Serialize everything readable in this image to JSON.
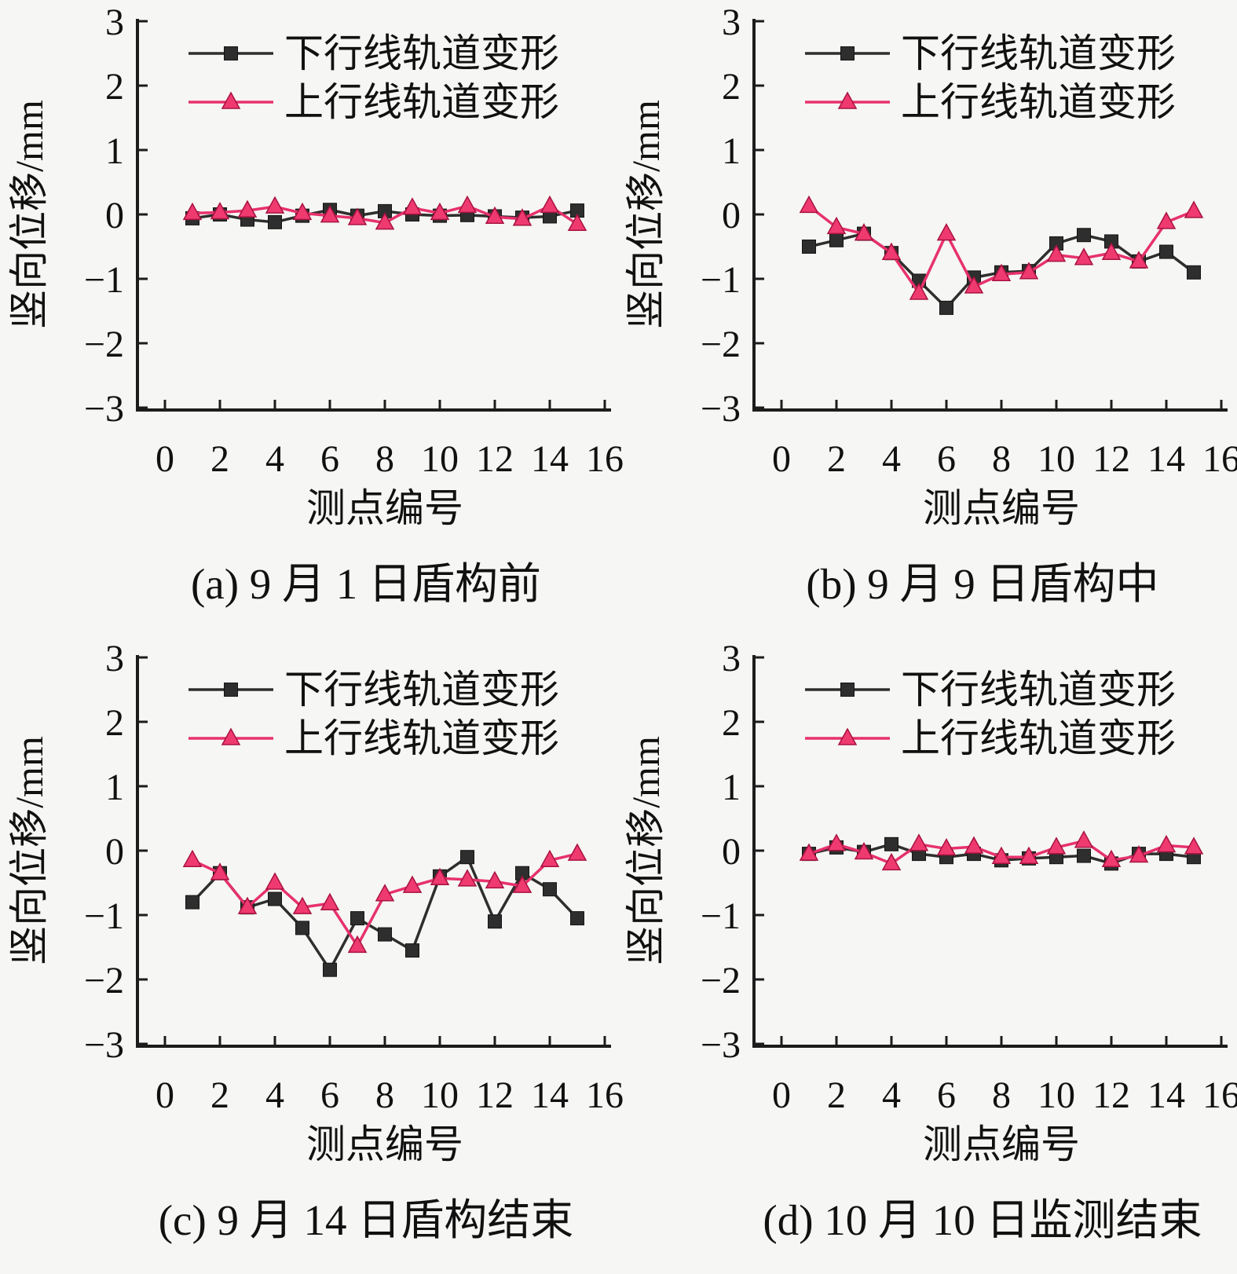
{
  "figure": {
    "background": "#f6f6f4",
    "text_color": "#111111",
    "axis_color": "#1c1c1c",
    "series_styles": [
      {
        "key": "down",
        "label": "下行线轨道变形",
        "line_color": "#2e2e2e",
        "marker": "square",
        "marker_fill": "#2e2e2e",
        "marker_edge": "#141414"
      },
      {
        "key": "up",
        "label": "上行线轨道变形",
        "line_color": "#e7316d",
        "marker": "triangle",
        "marker_fill": "#ef3a70",
        "marker_edge": "#a8123f"
      }
    ]
  },
  "chart_data": [
    {
      "id": "a",
      "type": "line",
      "caption": "(a) 9 月 1 日盾构前",
      "xlabel": "测点编号",
      "ylabel": "竖向位移/mm",
      "xlim": [
        0,
        16
      ],
      "ylim": [
        -3,
        3
      ],
      "grid": false,
      "xticks": [
        0,
        2,
        4,
        6,
        8,
        10,
        12,
        14,
        16
      ],
      "yticks": [
        3,
        2,
        1,
        0,
        -1,
        -2,
        -3
      ],
      "legend_position": "top-inside",
      "x": [
        1,
        2,
        3,
        4,
        5,
        6,
        7,
        8,
        9,
        10,
        11,
        12,
        13,
        14,
        15
      ],
      "series": [
        {
          "name": "下行线轨道变形",
          "values": [
            -0.06,
            0.0,
            -0.08,
            -0.12,
            -0.02,
            0.07,
            -0.02,
            0.05,
            0.0,
            -0.02,
            -0.01,
            -0.03,
            -0.05,
            -0.03,
            0.06
          ]
        },
        {
          "name": "上行线轨道变形",
          "values": [
            0.02,
            0.03,
            0.06,
            0.12,
            0.02,
            -0.02,
            -0.06,
            -0.13,
            0.1,
            0.02,
            0.13,
            -0.04,
            -0.07,
            0.13,
            -0.15
          ]
        }
      ]
    },
    {
      "id": "b",
      "type": "line",
      "caption": "(b) 9 月 9 日盾构中",
      "xlabel": "测点编号",
      "ylabel": "竖向位移/mm",
      "xlim": [
        0,
        16
      ],
      "ylim": [
        -3,
        3
      ],
      "grid": false,
      "xticks": [
        0,
        2,
        4,
        6,
        8,
        10,
        12,
        14,
        16
      ],
      "yticks": [
        3,
        2,
        1,
        0,
        -1,
        -2,
        -3
      ],
      "legend_position": "top-inside",
      "x": [
        1,
        2,
        3,
        4,
        5,
        6,
        7,
        8,
        9,
        10,
        11,
        12,
        13,
        14,
        15
      ],
      "series": [
        {
          "name": "下行线轨道变形",
          "values": [
            -0.5,
            -0.4,
            -0.3,
            -0.6,
            -1.03,
            -1.45,
            -0.98,
            -0.9,
            -0.88,
            -0.45,
            -0.32,
            -0.42,
            -0.73,
            -0.58,
            -0.9
          ]
        },
        {
          "name": "上行线轨道变形",
          "values": [
            0.13,
            -0.2,
            -0.3,
            -0.6,
            -1.22,
            -0.3,
            -1.12,
            -0.93,
            -0.9,
            -0.63,
            -0.68,
            -0.6,
            -0.73,
            -0.12,
            0.05
          ]
        }
      ]
    },
    {
      "id": "c",
      "type": "line",
      "caption": "(c) 9 月 14 日盾构结束",
      "xlabel": "测点编号",
      "ylabel": "竖向位移/mm",
      "xlim": [
        0,
        16
      ],
      "ylim": [
        -3,
        3
      ],
      "grid": false,
      "xticks": [
        0,
        2,
        4,
        6,
        8,
        10,
        12,
        14,
        16
      ],
      "yticks": [
        3,
        2,
        1,
        0,
        -1,
        -2,
        -3
      ],
      "legend_position": "top-inside",
      "x": [
        1,
        2,
        3,
        4,
        5,
        6,
        7,
        8,
        9,
        10,
        11,
        12,
        13,
        14,
        15
      ],
      "series": [
        {
          "name": "下行线轨道变形",
          "values": [
            -0.8,
            -0.35,
            -0.88,
            -0.75,
            -1.2,
            -1.85,
            -1.05,
            -1.3,
            -1.55,
            -0.4,
            -0.1,
            -1.1,
            -0.35,
            -0.6,
            -1.05
          ]
        },
        {
          "name": "上行线轨道变形",
          "values": [
            -0.15,
            -0.35,
            -0.88,
            -0.5,
            -0.88,
            -0.82,
            -1.48,
            -0.68,
            -0.55,
            -0.43,
            -0.45,
            -0.48,
            -0.55,
            -0.15,
            -0.05
          ]
        }
      ]
    },
    {
      "id": "d",
      "type": "line",
      "caption": "(d) 10 月 10 日监测结束",
      "xlabel": "测点编号",
      "ylabel": "竖向位移/mm",
      "xlim": [
        0,
        16
      ],
      "ylim": [
        -3,
        3
      ],
      "grid": false,
      "xticks": [
        0,
        2,
        4,
        6,
        8,
        10,
        12,
        14,
        16
      ],
      "yticks": [
        3,
        2,
        1,
        0,
        -1,
        -2,
        -3
      ],
      "legend_position": "top-inside",
      "x": [
        1,
        2,
        3,
        4,
        5,
        6,
        7,
        8,
        9,
        10,
        11,
        12,
        13,
        14,
        15
      ],
      "series": [
        {
          "name": "下行线轨道变形",
          "values": [
            -0.05,
            0.05,
            -0.02,
            0.1,
            -0.05,
            -0.1,
            -0.05,
            -0.15,
            -0.12,
            -0.1,
            -0.08,
            -0.2,
            -0.05,
            -0.05,
            -0.1
          ]
        },
        {
          "name": "上行线轨道变形",
          "values": [
            -0.05,
            0.1,
            -0.03,
            -0.2,
            0.1,
            0.03,
            0.06,
            -0.1,
            -0.1,
            0.05,
            0.15,
            -0.15,
            -0.08,
            0.08,
            0.05
          ]
        }
      ]
    }
  ]
}
